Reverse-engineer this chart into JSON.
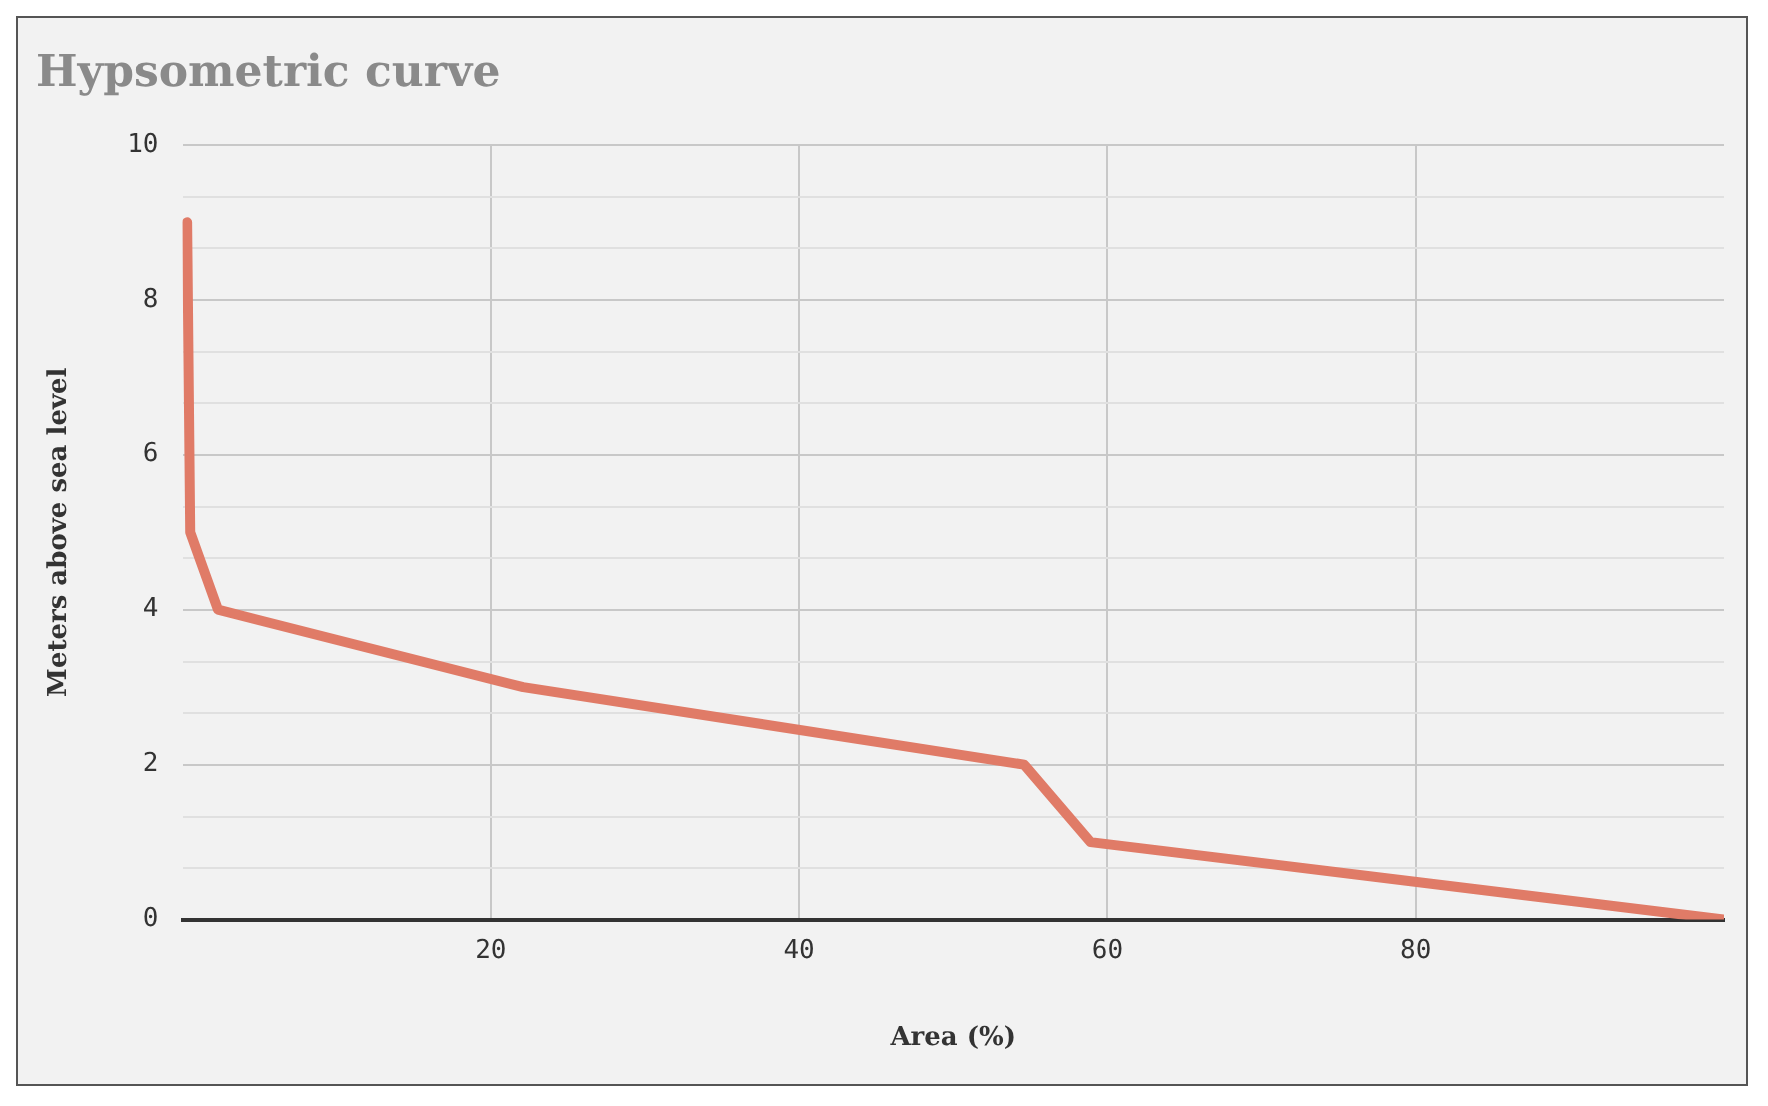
{
  "chart_data": {
    "type": "line",
    "title": "Hypsometric curve",
    "xlabel": "Area (%)",
    "ylabel": "Meters above sea level",
    "x": [
      0.3,
      0.5,
      2.3,
      22.1,
      54.6,
      58.9,
      100
    ],
    "series": [
      {
        "color": "#e07b67",
        "values": [
          9,
          5,
          4,
          3,
          2,
          1,
          0
        ]
      }
    ],
    "xlim": [
      0,
      100
    ],
    "xticks": [
      20,
      40,
      60,
      80
    ],
    "ylim": [
      0,
      10
    ],
    "yticks": [
      0,
      {
        "value": 0.67,
        "label": null
      },
      {
        "value": 1.33,
        "label": null
      },
      2,
      {
        "value": 2.67,
        "label": null
      },
      {
        "value": 3.33,
        "label": null
      },
      4,
      {
        "value": 4.67,
        "label": null
      },
      {
        "value": 5.33,
        "label": null
      },
      6,
      {
        "value": 6.67,
        "label": null
      },
      {
        "value": 7.33,
        "label": null
      },
      8,
      {
        "value": 8.67,
        "label": null
      },
      {
        "value": 9.33,
        "label": null
      },
      10
    ],
    "grid": true,
    "legend": false,
    "marker": "none",
    "line_style": "solid"
  }
}
